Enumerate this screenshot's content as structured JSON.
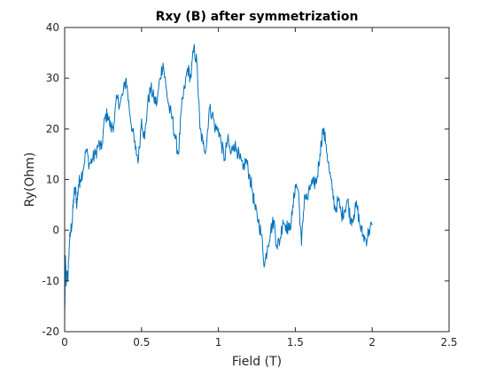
{
  "chart_data": {
    "type": "line",
    "title": "Rxy (B) after symmetrization",
    "xlabel": "Field (T)",
    "ylabel": "Ry(Ohm)",
    "xlim": [
      0,
      2.5
    ],
    "ylim": [
      -20,
      40
    ],
    "xticks": [
      0,
      0.5,
      1,
      1.5,
      2,
      2.5
    ],
    "yticks": [
      -20,
      -10,
      0,
      10,
      20,
      30,
      40
    ],
    "xtick_labels": [
      "0",
      "0.5",
      "1",
      "1.5",
      "2",
      "2.5"
    ],
    "ytick_labels": [
      "-20",
      "-10",
      "0",
      "10",
      "20",
      "30",
      "40"
    ],
    "grid": false,
    "legend": "none",
    "line_color": "#0072BD",
    "axis_color": "#262626",
    "series": [
      {
        "x": [
          0,
          0.005,
          0.01,
          0.015,
          0.02,
          0.03,
          0.04,
          0.05,
          0.06,
          0.07,
          0.08,
          0.09,
          0.1,
          0.12,
          0.14,
          0.16,
          0.18,
          0.2,
          0.22,
          0.24,
          0.26,
          0.28,
          0.3,
          0.32,
          0.34,
          0.36,
          0.38,
          0.4,
          0.42,
          0.44,
          0.46,
          0.48,
          0.5,
          0.52,
          0.54,
          0.56,
          0.58,
          0.6,
          0.62,
          0.64,
          0.66,
          0.68,
          0.7,
          0.72,
          0.74,
          0.76,
          0.78,
          0.8,
          0.82,
          0.84,
          0.86,
          0.88,
          0.9,
          0.92,
          0.94,
          0.96,
          0.98,
          1.0,
          1.02,
          1.04,
          1.06,
          1.08,
          1.1,
          1.12,
          1.14,
          1.16,
          1.18,
          1.2,
          1.22,
          1.24,
          1.26,
          1.28,
          1.3,
          1.32,
          1.34,
          1.36,
          1.38,
          1.4,
          1.42,
          1.44,
          1.46,
          1.48,
          1.5,
          1.52,
          1.54,
          1.56,
          1.58,
          1.6,
          1.62,
          1.64,
          1.66,
          1.68,
          1.7,
          1.72,
          1.74,
          1.76,
          1.78,
          1.8,
          1.82,
          1.84,
          1.86,
          1.88,
          1.9,
          1.92,
          1.94,
          1.96,
          1.98,
          2.0
        ],
        "y": [
          -18,
          -5,
          -11,
          -8,
          -10,
          -3,
          0,
          2,
          7,
          8,
          5,
          9,
          10,
          12,
          16,
          13,
          14,
          15,
          17,
          16,
          22,
          23,
          20,
          21,
          26,
          25,
          27,
          30,
          24,
          20,
          16,
          14,
          22,
          18,
          25,
          28,
          26,
          25,
          30,
          33,
          28,
          24,
          22,
          18,
          15,
          24,
          28,
          32,
          30,
          36,
          33,
          20,
          17,
          16,
          24,
          23,
          20,
          20,
          17,
          14,
          18,
          15,
          17,
          16,
          14,
          12,
          14,
          11,
          8,
          4,
          2,
          -1,
          -7,
          -3,
          0,
          2,
          -3,
          -2,
          2,
          1,
          0,
          3,
          9,
          8,
          -3,
          7,
          6,
          9,
          9,
          10,
          15,
          20,
          17,
          12,
          8,
          4,
          6,
          3,
          4,
          6,
          2,
          3,
          5,
          1,
          -1,
          -2,
          0,
          1
        ]
      }
    ]
  }
}
